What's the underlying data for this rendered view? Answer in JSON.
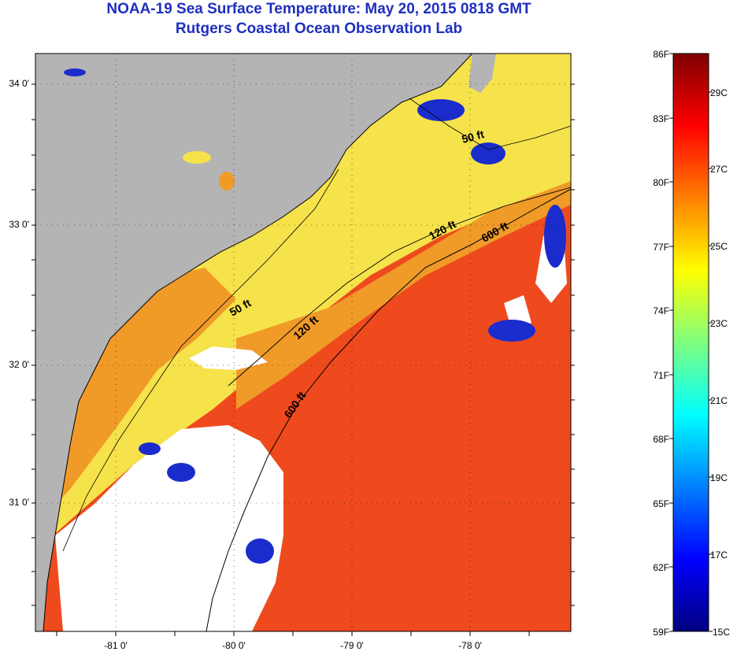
{
  "title": {
    "line1": "NOAA-19 Sea Surface Temperature:  May 20, 2015 0818 GMT",
    "line2": "Rutgers Coastal Ocean Observation Lab"
  },
  "axes": {
    "y_labels": [
      "34 0'",
      "33 0'",
      "32 0'",
      "31 0'"
    ],
    "x_labels": [
      "-81 0'",
      "-80 0'",
      "-79 0'",
      "-78 0'"
    ]
  },
  "isobaths": [
    {
      "label": "50 ft"
    },
    {
      "label": "50 ft"
    },
    {
      "label": "120 ft"
    },
    {
      "label": "120 ft"
    },
    {
      "label": "600 ft"
    },
    {
      "label": "600 ft"
    }
  ],
  "colorbar": {
    "fahrenheit": [
      "86F",
      "83F",
      "80F",
      "77F",
      "74F",
      "71F",
      "68F",
      "65F",
      "62F",
      "59F"
    ],
    "celsius": [
      "29C",
      "27C",
      "25C",
      "23C",
      "21C",
      "19C",
      "17C",
      "15C"
    ],
    "colors": [
      "#00007f",
      "#0000ff",
      "#007fff",
      "#00ffff",
      "#7fff7f",
      "#ffff00",
      "#ff7f00",
      "#ff0000",
      "#7f0000"
    ]
  },
  "map_colors": {
    "land": "#b4b4b4",
    "cloud": "#ffffff",
    "nearshore": "#f09a28",
    "shelf": "#f6e24a",
    "gulfstream": "#ee4a1e",
    "cold": "#1a2ccc"
  }
}
